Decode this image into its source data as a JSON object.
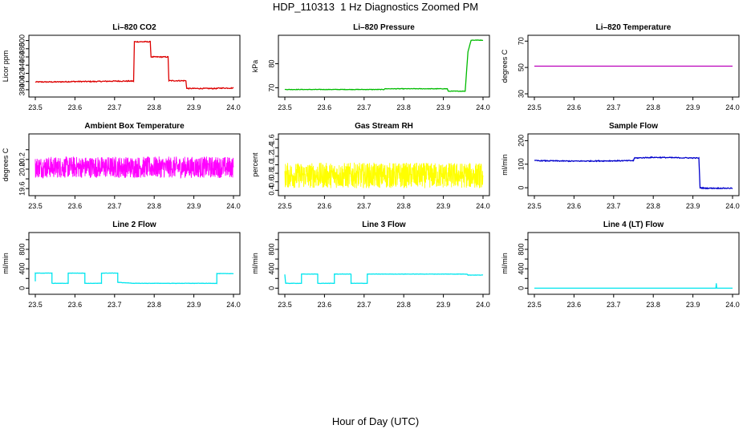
{
  "figure": {
    "title": "HDP_110313  1 Hz Diagnostics Zoomed PM",
    "xlabel": "Hour of Day (UTC)"
  },
  "chart_data": [
    {
      "type": "line",
      "title": "Li–820 CO2",
      "ylabel": "Licor ppm",
      "color": "#dd0000",
      "xlim": [
        23.5,
        24.0
      ],
      "ylim": [
        370,
        505
      ],
      "xticks": [
        "23.5",
        "23.6",
        "23.7",
        "23.8",
        "23.9",
        "24.0"
      ],
      "yticks": [
        {
          "v": 380,
          "label": "380"
        },
        {
          "v": 400,
          "label": "400"
        },
        {
          "v": 420,
          "label": "420"
        },
        {
          "v": 440,
          "label": "440"
        },
        {
          "v": 460,
          "label": "460"
        },
        {
          "v": 480,
          "label": "480"
        },
        {
          "v": 500,
          "label": "500"
        }
      ],
      "noise": 1.2,
      "series": [
        {
          "x": [
            23.5,
            23.55,
            23.6,
            23.65,
            23.7,
            23.748,
            23.75,
            23.79,
            23.792,
            23.835,
            23.837,
            23.88,
            23.882,
            23.96,
            23.962,
            24.0
          ],
          "y": [
            399,
            399,
            400,
            400,
            401,
            401,
            497,
            497,
            460,
            460,
            402,
            402,
            383,
            383,
            384,
            384
          ]
        }
      ]
    },
    {
      "type": "line",
      "title": "Li–820 Pressure",
      "ylabel": "kPa",
      "color": "#00bb00",
      "xlim": [
        23.5,
        24.0
      ],
      "ylim": [
        67.5,
        90.5
      ],
      "xticks": [
        "23.5",
        "23.6",
        "23.7",
        "23.8",
        "23.9",
        "24.0"
      ],
      "yticks": [
        {
          "v": 70,
          "label": "70"
        },
        {
          "v": 80,
          "label": "80"
        }
      ],
      "noise": 0.1,
      "series": [
        {
          "x": [
            23.5,
            23.75,
            23.752,
            23.91,
            23.912,
            23.955,
            23.962,
            23.97,
            24.0
          ],
          "y": [
            69.3,
            69.3,
            69.6,
            69.6,
            68.6,
            68.6,
            85,
            89.8,
            89.8
          ]
        }
      ]
    },
    {
      "type": "line",
      "title": "Li–820 Temperature",
      "ylabel": "degrees C",
      "color": "#bb00bb",
      "xlim": [
        23.5,
        24.0
      ],
      "ylim": [
        30,
        72
      ],
      "xticks": [
        "23.5",
        "23.6",
        "23.7",
        "23.8",
        "23.9",
        "24.0"
      ],
      "yticks": [
        {
          "v": 30,
          "label": "30"
        },
        {
          "v": 50,
          "label": "50"
        },
        {
          "v": 70,
          "label": "70"
        }
      ],
      "noise": 0,
      "series": [
        {
          "x": [
            23.5,
            24.0
          ],
          "y": [
            51,
            51
          ]
        }
      ]
    },
    {
      "type": "line",
      "title": "Ambient Box Temperature",
      "ylabel": "degrees C",
      "color": "#ff00ff",
      "xlim": [
        23.5,
        24.0
      ],
      "ylim": [
        19.52,
        20.66
      ],
      "xticks": [
        "23.5",
        "23.6",
        "23.7",
        "23.8",
        "23.9",
        "24.0"
      ],
      "yticks": [
        {
          "v": 19.6,
          "label": "19.6"
        },
        {
          "v": 19.8,
          "label": ""
        },
        {
          "v": 20.0,
          "label": "20.0"
        },
        {
          "v": 20.2,
          "label": "20.2"
        },
        {
          "v": 20.4,
          "label": ""
        }
      ],
      "noise": 0.22,
      "series": [
        {
          "x": [
            23.5,
            24.0
          ],
          "y": [
            20.04,
            20.04
          ]
        }
      ]
    },
    {
      "type": "line",
      "title": "Gas Stream RH",
      "ylabel": "percent",
      "color": "#ffff00",
      "xlim": [
        23.5,
        24.0
      ],
      "ylim": [
        0.35,
        1.65
      ],
      "xticks": [
        "23.5",
        "23.6",
        "23.7",
        "23.8",
        "23.9",
        "24.0"
      ],
      "yticks": [
        {
          "v": 0.4,
          "label": "0.4"
        },
        {
          "v": 0.6,
          "label": "0.6"
        },
        {
          "v": 0.8,
          "label": "0.8"
        },
        {
          "v": 1.0,
          "label": "1.0"
        },
        {
          "v": 1.2,
          "label": "1.2"
        },
        {
          "v": 1.4,
          "label": "1.4"
        },
        {
          "v": 1.6,
          "label": "1.6"
        }
      ],
      "noise": 0.3,
      "series": [
        {
          "x": [
            23.5,
            24.0
          ],
          "y": [
            0.75,
            0.75
          ]
        }
      ]
    },
    {
      "type": "line",
      "title": "Sample Flow",
      "ylabel": "ml/min",
      "color": "#0000cc",
      "xlim": [
        23.5,
        24.0
      ],
      "ylim": [
        -20,
        215
      ],
      "xticks": [
        "23.5",
        "23.6",
        "23.7",
        "23.8",
        "23.9",
        "24.0"
      ],
      "yticks": [
        {
          "v": 0,
          "label": "0"
        },
        {
          "v": 100,
          "label": "100"
        },
        {
          "v": 200,
          "label": "200"
        }
      ],
      "noise": 2,
      "series": [
        {
          "x": [
            23.5,
            23.6,
            23.75,
            23.752,
            23.8,
            23.915,
            23.918,
            23.93,
            24.0
          ],
          "y": [
            115,
            113,
            115,
            126,
            129,
            126,
            0,
            -2,
            -2
          ]
        }
      ]
    },
    {
      "type": "line",
      "title": "Line 2 Flow",
      "ylabel": "ml/min",
      "color": "#00e5ee",
      "xlim": [
        23.5,
        24.0
      ],
      "ylim": [
        -60,
        1080
      ],
      "xticks": [
        "23.5",
        "23.6",
        "23.7",
        "23.8",
        "23.9",
        "24.0"
      ],
      "yticks": [
        {
          "v": 0,
          "label": "0"
        },
        {
          "v": 200,
          "label": ""
        },
        {
          "v": 400,
          "label": "400"
        },
        {
          "v": 600,
          "label": ""
        },
        {
          "v": 800,
          "label": "800"
        },
        {
          "v": 1000,
          "label": ""
        }
      ],
      "noise": 3,
      "series": [
        {
          "x": [
            23.5,
            23.5,
            23.542,
            23.542,
            23.583,
            23.583,
            23.625,
            23.625,
            23.667,
            23.667,
            23.708,
            23.708,
            23.75,
            23.958,
            23.958,
            24.0
          ],
          "y": [
            140,
            310,
            310,
            100,
            100,
            310,
            310,
            100,
            100,
            310,
            310,
            120,
            100,
            100,
            300,
            300
          ]
        }
      ]
    },
    {
      "type": "line",
      "title": "Line 3 Flow",
      "ylabel": "ml/min",
      "color": "#00e5ee",
      "xlim": [
        23.5,
        24.0
      ],
      "ylim": [
        -60,
        1080
      ],
      "xticks": [
        "23.5",
        "23.6",
        "23.7",
        "23.8",
        "23.9",
        "24.0"
      ],
      "yticks": [
        {
          "v": 0,
          "label": "0"
        },
        {
          "v": 200,
          "label": ""
        },
        {
          "v": 400,
          "label": "400"
        },
        {
          "v": 600,
          "label": ""
        },
        {
          "v": 800,
          "label": "800"
        },
        {
          "v": 1000,
          "label": ""
        }
      ],
      "noise": 3,
      "series": [
        {
          "x": [
            23.5,
            23.5,
            23.502,
            23.542,
            23.542,
            23.583,
            23.583,
            23.625,
            23.625,
            23.667,
            23.667,
            23.708,
            23.708,
            23.96,
            23.962,
            24.0
          ],
          "y": [
            280,
            280,
            100,
            100,
            290,
            290,
            100,
            100,
            290,
            290,
            100,
            100,
            290,
            290,
            270,
            270
          ]
        }
      ]
    },
    {
      "type": "line",
      "title": "Line 4 (LT) Flow",
      "ylabel": "ml/min",
      "color": "#00e5ee",
      "xlim": [
        23.5,
        24.0
      ],
      "ylim": [
        -60,
        1080
      ],
      "xticks": [
        "23.5",
        "23.6",
        "23.7",
        "23.8",
        "23.9",
        "24.0"
      ],
      "yticks": [
        {
          "v": 0,
          "label": "0"
        },
        {
          "v": 200,
          "label": ""
        },
        {
          "v": 400,
          "label": "400"
        },
        {
          "v": 600,
          "label": ""
        },
        {
          "v": 800,
          "label": "800"
        },
        {
          "v": 1000,
          "label": ""
        }
      ],
      "noise": 0,
      "series": [
        {
          "x": [
            23.5,
            23.958,
            23.959,
            23.96,
            23.961,
            24.0
          ],
          "y": [
            0,
            0,
            100,
            5,
            0,
            0
          ]
        }
      ]
    }
  ]
}
